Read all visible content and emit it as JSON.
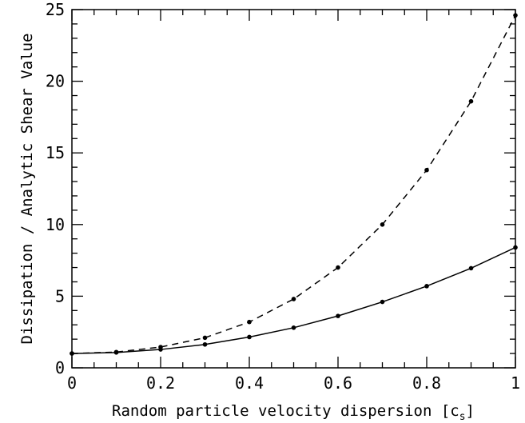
{
  "chart_data": {
    "type": "line",
    "xlabel": "Random particle velocity dispersion [c",
    "xlabel_sub": "s",
    "xlabel_end": "]",
    "ylabel": "Dissipation / Analytic Shear Value",
    "xlim": [
      0,
      1
    ],
    "ylim": [
      0,
      25
    ],
    "x_ticks": [
      0,
      0.2,
      0.4,
      0.6,
      0.8,
      1
    ],
    "x_tick_labels": [
      "0",
      "0.2",
      "0.4",
      "0.6",
      "0.8",
      "1"
    ],
    "y_ticks": [
      0,
      5,
      10,
      15,
      20,
      25
    ],
    "y_tick_labels": [
      "0",
      "5",
      "10",
      "15",
      "20",
      "25"
    ],
    "grid": false,
    "x": [
      0,
      0.1,
      0.2,
      0.3,
      0.4,
      0.5,
      0.6,
      0.7,
      0.8,
      0.9,
      1.0
    ],
    "series": [
      {
        "style": "dashed",
        "values": [
          1.0,
          1.1,
          1.45,
          2.1,
          3.2,
          4.8,
          7.0,
          10.0,
          13.8,
          18.6,
          24.6
        ]
      },
      {
        "style": "solid",
        "values": [
          1.0,
          1.07,
          1.28,
          1.63,
          2.15,
          2.8,
          3.62,
          4.6,
          5.7,
          6.95,
          8.4
        ]
      }
    ],
    "colors": {
      "line": "#000000",
      "marker": "#000000"
    }
  }
}
